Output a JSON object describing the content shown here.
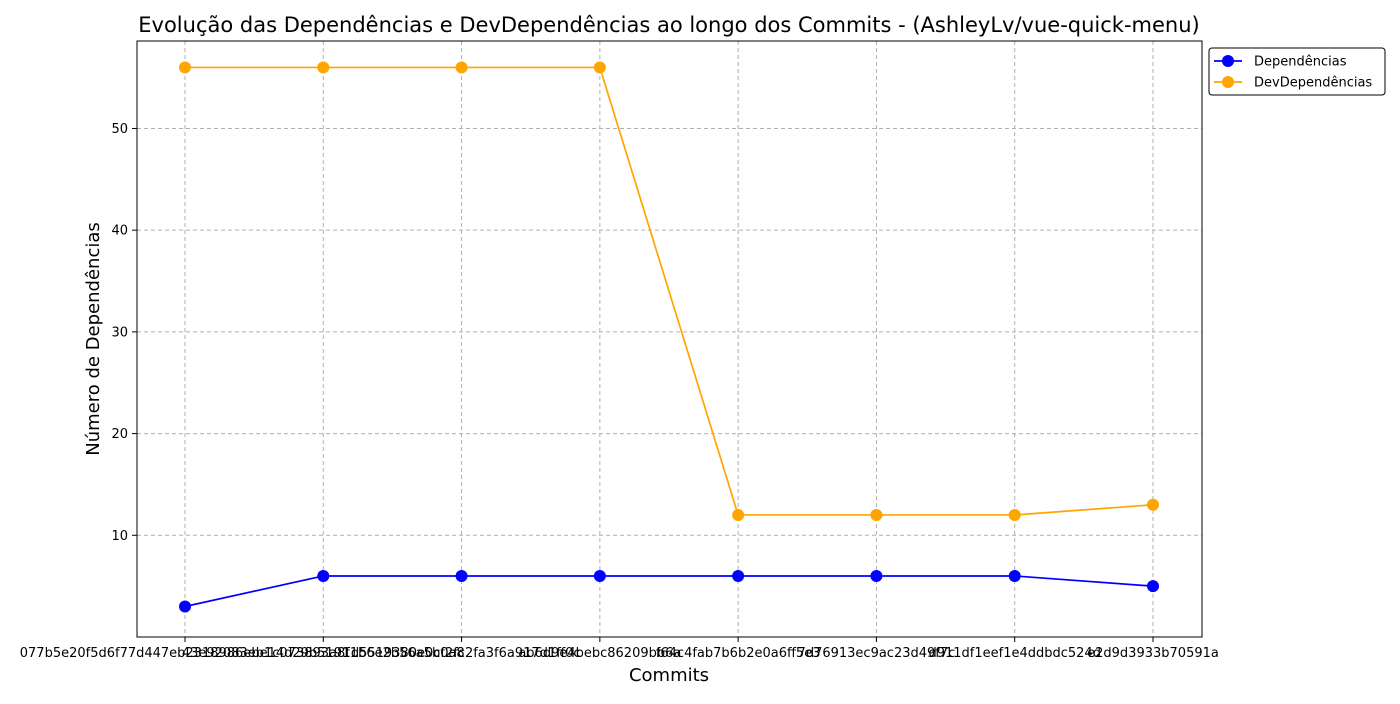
{
  "chart_data": {
    "type": "line",
    "title": "Evolução das Dependências e DevDependências ao longo dos Commits - (AshleyLv/vue-quick-menu)",
    "xlabel": "Commits",
    "ylabel": "Número de Dependências",
    "categories": [
      "077b5e20f5d6f77d447eb2318986ebe14d29b5191",
      "43e92083eb1c073893a8f1b6e2b56a5b0a8",
      "1d5519380e0cf2fc2fa3f6a917d1ff0c",
      "ab6d9e4bebc86209bb6a",
      "f64c4fab7b6b2e0a6ff5e3",
      "7d76913ec9ac23d49f7c",
      "d911df1eef1e4ddbdc524d",
      "e2d9d3933b70591a"
    ],
    "ylim": [
      0,
      58.6
    ],
    "yticks": [
      10,
      20,
      30,
      40,
      50
    ],
    "grid": true,
    "legend_position": "top-right-outside",
    "series": [
      {
        "name": "Dependências",
        "color": "#0000ff",
        "values": [
          3,
          6,
          6,
          6,
          6,
          6,
          6,
          5
        ]
      },
      {
        "name": "DevDependências",
        "color": "#ffa500",
        "values": [
          56,
          56,
          56,
          56,
          12,
          12,
          12,
          13
        ]
      }
    ]
  }
}
